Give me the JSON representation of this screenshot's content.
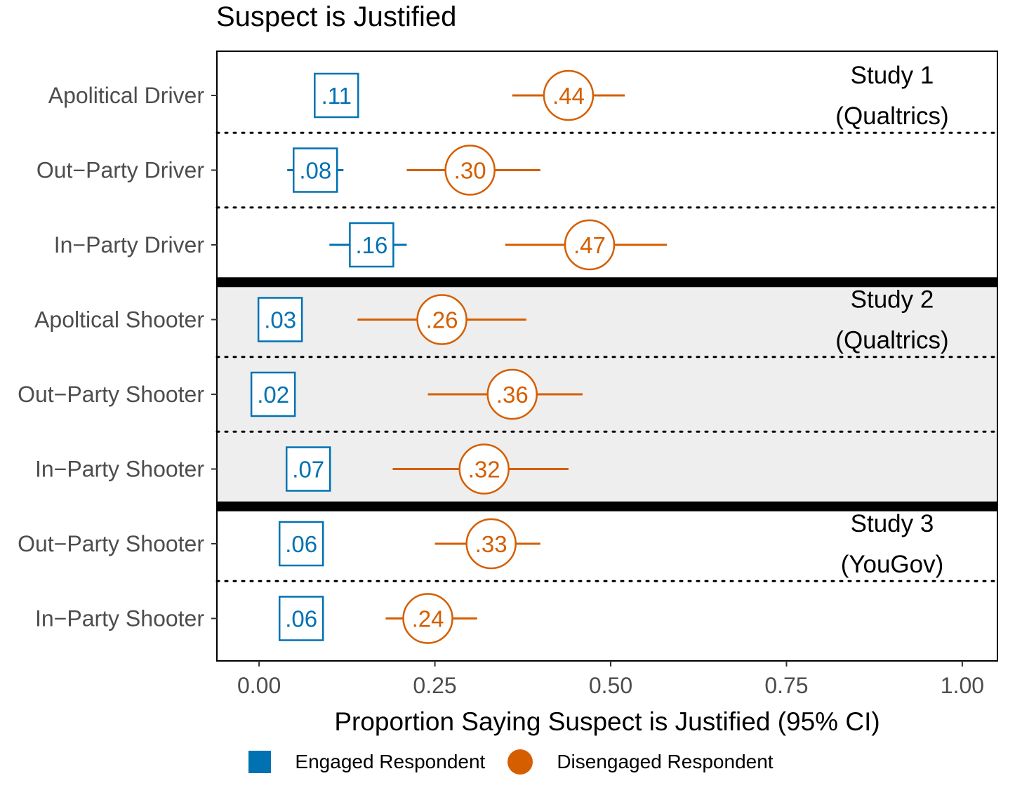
{
  "chart_data": {
    "type": "scatter",
    "title": "Suspect is Justified",
    "xlabel": "Proportion Saying Suspect is Justified (95% CI)",
    "ylabel": "",
    "xlim": [
      -0.06,
      1.05
    ],
    "xticks": [
      0.0,
      0.25,
      0.5,
      0.75,
      1.0
    ],
    "xtick_labels": [
      "0.00",
      "0.25",
      "0.50",
      "0.75",
      "1.00"
    ],
    "categories": [
      "Apolitical Driver",
      "Out−Party Driver",
      "In−Party Driver",
      "Apoltical Shooter",
      "Out−Party Shooter",
      "In−Party Shooter",
      "Out−Party Shooter",
      "In−Party Shooter"
    ],
    "groups": [
      {
        "name": "Study 1",
        "sub": "(Qualtrics)",
        "rows": [
          0,
          1,
          2
        ],
        "shaded": false
      },
      {
        "name": "Study 2",
        "sub": "(Qualtrics)",
        "rows": [
          3,
          4,
          5
        ],
        "shaded": true
      },
      {
        "name": "Study 3",
        "sub": "(YouGov)",
        "rows": [
          6,
          7
        ],
        "shaded": false
      }
    ],
    "series": [
      {
        "name": "Engaged Respondent",
        "marker": "square",
        "color": "#0072B2",
        "values": [
          0.11,
          0.08,
          0.16,
          0.03,
          0.02,
          0.07,
          0.06,
          0.06
        ],
        "labels": [
          ".11",
          ".08",
          ".16",
          ".03",
          ".02",
          ".07",
          ".06",
          ".06"
        ],
        "ci_low": [
          0.09,
          0.04,
          0.1,
          0.01,
          0.0,
          0.05,
          0.04,
          0.04
        ],
        "ci_high": [
          0.13,
          0.12,
          0.21,
          0.05,
          0.04,
          0.09,
          0.08,
          0.08
        ]
      },
      {
        "name": "Disengaged Respondent",
        "marker": "circle",
        "color": "#D55E00",
        "values": [
          0.44,
          0.3,
          0.47,
          0.26,
          0.36,
          0.32,
          0.33,
          0.24
        ],
        "labels": [
          ".44",
          ".30",
          ".47",
          ".26",
          ".36",
          ".32",
          ".33",
          ".24"
        ],
        "ci_low": [
          0.36,
          0.21,
          0.35,
          0.14,
          0.24,
          0.19,
          0.25,
          0.18
        ],
        "ci_high": [
          0.52,
          0.4,
          0.58,
          0.38,
          0.46,
          0.44,
          0.4,
          0.31
        ]
      }
    ],
    "legend_position": "bottom"
  }
}
